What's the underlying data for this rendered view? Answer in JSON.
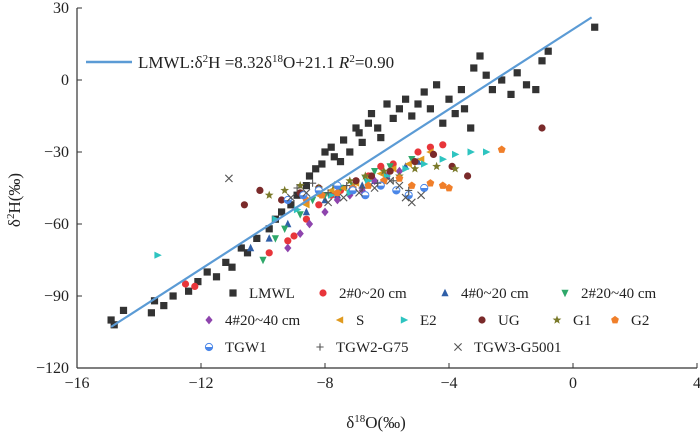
{
  "chart_data": {
    "type": "scatter",
    "title": "",
    "xlabel": "δ18O(‰)",
    "ylabel": "δ2H(‰)",
    "xlim": [
      -16,
      4
    ],
    "ylim": [
      -120,
      30
    ],
    "xticks": [
      -16,
      -12,
      -8,
      -4,
      0,
      4
    ],
    "yticks": [
      -120,
      -90,
      -60,
      -30,
      0,
      30
    ],
    "grid": false,
    "legend_position": "bottom-right",
    "fit_line": {
      "name": "LMWL",
      "equation": "LMWL:δ2H =8.32δ18O+21.1",
      "r2_text": "R2=0.90",
      "slope": 8.32,
      "intercept": 21.1,
      "x_range": [
        -14.9,
        0.6
      ],
      "color": "#5b9bd5"
    },
    "series": [
      {
        "name": "LMWL",
        "marker": "square",
        "color": "#333333",
        "points": [
          [
            -14.9,
            -100
          ],
          [
            -14.8,
            -102
          ],
          [
            -14.5,
            -96
          ],
          [
            -13.6,
            -97
          ],
          [
            -13.5,
            -92
          ],
          [
            -13.2,
            -94
          ],
          [
            -12.9,
            -90
          ],
          [
            -12.4,
            -88
          ],
          [
            -12.1,
            -84
          ],
          [
            -11.8,
            -80
          ],
          [
            -11.5,
            -82
          ],
          [
            -11.2,
            -76
          ],
          [
            -11.0,
            -78
          ],
          [
            -10.7,
            -70
          ],
          [
            -10.5,
            -72
          ],
          [
            -10.2,
            -66
          ],
          [
            -9.8,
            -62
          ],
          [
            -9.6,
            -58
          ],
          [
            -9.4,
            -55
          ],
          [
            -9.1,
            -52
          ],
          [
            -8.9,
            -48
          ],
          [
            -8.6,
            -44
          ],
          [
            -8.5,
            -40
          ],
          [
            -8.3,
            -37
          ],
          [
            -8.1,
            -35
          ],
          [
            -8.0,
            -30
          ],
          [
            -7.8,
            -28
          ],
          [
            -7.7,
            -32
          ],
          [
            -7.5,
            -34
          ],
          [
            -7.4,
            -25
          ],
          [
            -7.2,
            -30
          ],
          [
            -7.0,
            -20
          ],
          [
            -6.9,
            -22
          ],
          [
            -6.8,
            -26
          ],
          [
            -6.6,
            -18
          ],
          [
            -6.5,
            -14
          ],
          [
            -6.3,
            -20
          ],
          [
            -6.2,
            -24
          ],
          [
            -6.0,
            -10
          ],
          [
            -5.8,
            -16
          ],
          [
            -5.6,
            -12
          ],
          [
            -5.4,
            -8
          ],
          [
            -5.2,
            -15
          ],
          [
            -5.0,
            -10
          ],
          [
            -4.8,
            -5
          ],
          [
            -4.6,
            -12
          ],
          [
            -4.4,
            -2
          ],
          [
            -4.2,
            -18
          ],
          [
            -4.0,
            -8
          ],
          [
            -3.8,
            -14
          ],
          [
            -3.6,
            -4
          ],
          [
            -3.5,
            -12
          ],
          [
            -3.3,
            -20
          ],
          [
            -3.2,
            5
          ],
          [
            -3.0,
            10
          ],
          [
            -2.8,
            2
          ],
          [
            -2.6,
            -4
          ],
          [
            -2.3,
            0
          ],
          [
            -2.0,
            -6
          ],
          [
            -1.8,
            3
          ],
          [
            -1.5,
            -2
          ],
          [
            -1.2,
            -4
          ],
          [
            -1.0,
            8
          ],
          [
            -0.8,
            12
          ],
          [
            0.7,
            22
          ]
        ]
      },
      {
        "name": "2#0~20 cm",
        "marker": "circle",
        "color": "#e8353a",
        "points": [
          [
            -12.5,
            -85
          ],
          [
            -12.2,
            -86
          ],
          [
            -9.8,
            -72
          ],
          [
            -9.2,
            -67
          ],
          [
            -9.0,
            -65
          ],
          [
            -8.6,
            -58
          ],
          [
            -8.2,
            -52
          ],
          [
            -7.8,
            -48
          ],
          [
            -7.5,
            -46
          ],
          [
            -7.0,
            -42
          ],
          [
            -6.6,
            -40
          ],
          [
            -6.2,
            -36
          ],
          [
            -5.8,
            -35
          ],
          [
            -5.0,
            -30
          ],
          [
            -4.6,
            -28
          ],
          [
            -4.2,
            -27
          ]
        ]
      },
      {
        "name": "4#0~20 cm",
        "marker": "triangle",
        "color": "#2f5fa8",
        "points": [
          [
            -10.4,
            -70
          ],
          [
            -9.8,
            -66
          ],
          [
            -9.2,
            -60
          ],
          [
            -8.6,
            -55
          ],
          [
            -8.0,
            -50
          ],
          [
            -7.6,
            -48
          ],
          [
            -7.2,
            -46
          ],
          [
            -6.8,
            -44
          ],
          [
            -6.4,
            -42
          ],
          [
            -6.0,
            -40
          ],
          [
            -5.4,
            -36
          ],
          [
            -5.0,
            -34
          ]
        ]
      },
      {
        "name": "2#20~40 cm",
        "marker": "triangle-down",
        "color": "#2fa86a",
        "points": [
          [
            -10.0,
            -75
          ],
          [
            -9.6,
            -66
          ],
          [
            -9.3,
            -62
          ],
          [
            -8.8,
            -56
          ],
          [
            -8.4,
            -50
          ],
          [
            -8.0,
            -48
          ],
          [
            -7.5,
            -45
          ],
          [
            -7.1,
            -44
          ],
          [
            -6.7,
            -41
          ],
          [
            -6.4,
            -38
          ],
          [
            -5.9,
            -36
          ],
          [
            -5.2,
            -33
          ]
        ]
      },
      {
        "name": "4#20~40 cm",
        "marker": "diamond",
        "color": "#8e44ad",
        "points": [
          [
            -9.2,
            -70
          ],
          [
            -8.8,
            -64
          ],
          [
            -8.5,
            -60
          ],
          [
            -8.0,
            -55
          ],
          [
            -7.6,
            -50
          ],
          [
            -7.2,
            -48
          ],
          [
            -6.8,
            -46
          ],
          [
            -6.4,
            -42
          ],
          [
            -6.0,
            -40
          ],
          [
            -5.6,
            -38
          ]
        ]
      },
      {
        "name": "S",
        "marker": "triangle-left",
        "color": "#e09a1f",
        "points": [
          [
            -8.6,
            -52
          ],
          [
            -8.2,
            -48
          ],
          [
            -7.8,
            -46
          ],
          [
            -7.4,
            -45
          ],
          [
            -7.0,
            -43
          ],
          [
            -6.6,
            -41
          ],
          [
            -6.2,
            -39
          ],
          [
            -5.8,
            -37
          ],
          [
            -5.3,
            -35
          ],
          [
            -4.9,
            -33
          ],
          [
            -4.6,
            -30
          ]
        ]
      },
      {
        "name": "E2",
        "marker": "triangle-right",
        "color": "#2ec4c0",
        "points": [
          [
            -13.4,
            -73
          ],
          [
            -9.6,
            -58
          ],
          [
            -8.9,
            -54
          ],
          [
            -7.8,
            -48
          ],
          [
            -7.2,
            -47
          ],
          [
            -6.6,
            -42
          ],
          [
            -6.0,
            -40
          ],
          [
            -5.4,
            -37
          ],
          [
            -4.8,
            -35
          ],
          [
            -4.2,
            -33
          ],
          [
            -3.8,
            -31
          ],
          [
            -3.3,
            -30
          ],
          [
            -2.8,
            -30
          ]
        ]
      },
      {
        "name": "UG",
        "marker": "circle",
        "color": "#7a2a2a",
        "points": [
          [
            -10.6,
            -52
          ],
          [
            -10.1,
            -46
          ],
          [
            -9.4,
            -50
          ],
          [
            -8.8,
            -47
          ],
          [
            -8.2,
            -45
          ],
          [
            -7.6,
            -44
          ],
          [
            -7.0,
            -42
          ],
          [
            -6.5,
            -40
          ],
          [
            -5.9,
            -38
          ],
          [
            -5.1,
            -34
          ],
          [
            -4.5,
            -31
          ],
          [
            -3.9,
            -36
          ],
          [
            -3.4,
            -40
          ],
          [
            -1.0,
            -20
          ]
        ]
      },
      {
        "name": "G1",
        "marker": "star",
        "color": "#7a7a2a",
        "points": [
          [
            -9.8,
            -48
          ],
          [
            -9.3,
            -46
          ],
          [
            -8.8,
            -44
          ],
          [
            -8.2,
            -45
          ],
          [
            -7.7,
            -44
          ],
          [
            -7.2,
            -42
          ],
          [
            -6.7,
            -40
          ],
          [
            -6.1,
            -38
          ],
          [
            -5.6,
            -40
          ],
          [
            -5.1,
            -37
          ],
          [
            -4.4,
            -36
          ],
          [
            -3.8,
            -37
          ]
        ]
      },
      {
        "name": "G2",
        "marker": "pentagon",
        "color": "#f07f2a",
        "points": [
          [
            -8.6,
            -50
          ],
          [
            -8.1,
            -48
          ],
          [
            -7.6,
            -47
          ],
          [
            -7.1,
            -45
          ],
          [
            -6.6,
            -44
          ],
          [
            -6.1,
            -42
          ],
          [
            -5.6,
            -41
          ],
          [
            -5.2,
            -44
          ],
          [
            -4.6,
            -43
          ],
          [
            -4.2,
            -44
          ],
          [
            -4.0,
            -45
          ],
          [
            -2.3,
            -29
          ]
        ]
      },
      {
        "name": "TGW1",
        "marker": "circle-half",
        "color": "#4a86e8",
        "points": [
          [
            -9.2,
            -50
          ],
          [
            -8.7,
            -48
          ],
          [
            -8.2,
            -46
          ],
          [
            -7.6,
            -44
          ],
          [
            -7.1,
            -46
          ],
          [
            -6.7,
            -48
          ],
          [
            -6.2,
            -44
          ],
          [
            -5.7,
            -46
          ],
          [
            -5.3,
            -48
          ],
          [
            -4.8,
            -45
          ]
        ]
      },
      {
        "name": "TGW2-G75",
        "marker": "plus",
        "color": "#555555",
        "points": [
          [
            -8.9,
            -45
          ],
          [
            -8.4,
            -43
          ],
          [
            -7.9,
            -47
          ],
          [
            -7.3,
            -44
          ],
          [
            -6.8,
            -45
          ],
          [
            -6.3,
            -43
          ],
          [
            -5.8,
            -42
          ],
          [
            -5.3,
            -46
          ]
        ]
      },
      {
        "name": "TGW3-G5001",
        "marker": "x",
        "color": "#555555",
        "points": [
          [
            -11.1,
            -41
          ],
          [
            -9.1,
            -49
          ],
          [
            -8.6,
            -47
          ],
          [
            -7.9,
            -51
          ],
          [
            -7.4,
            -49
          ],
          [
            -6.9,
            -47
          ],
          [
            -6.4,
            -45
          ],
          [
            -5.9,
            -42
          ],
          [
            -5.6,
            -44
          ],
          [
            -5.4,
            -49
          ],
          [
            -5.2,
            -51
          ],
          [
            -4.9,
            -48
          ]
        ]
      }
    ]
  }
}
